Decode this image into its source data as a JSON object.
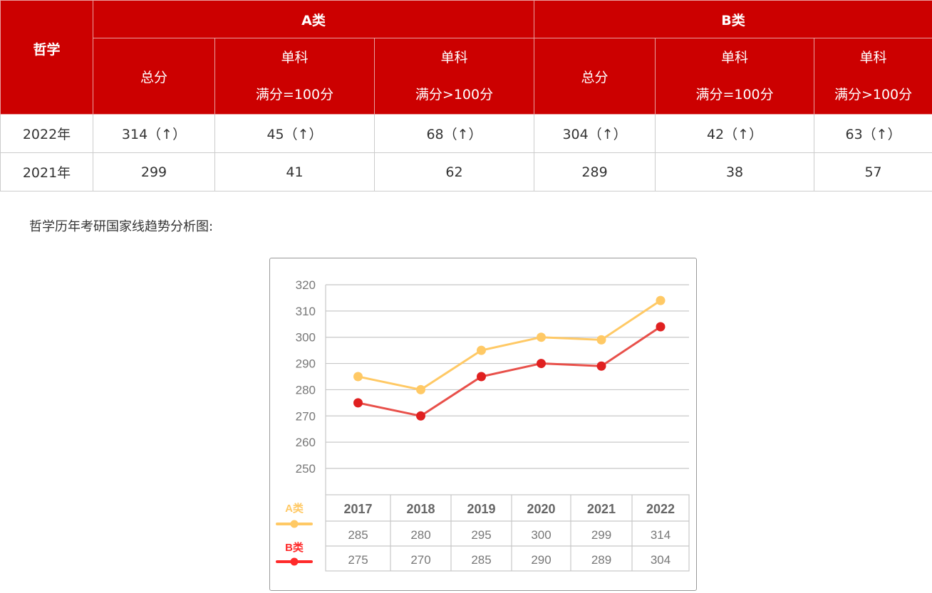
{
  "table": {
    "corner_label": "哲学",
    "groups": [
      {
        "label": "A类",
        "columns": [
          {
            "line1": "总分",
            "line2": ""
          },
          {
            "line1": "单科",
            "line2": "满分=100分"
          },
          {
            "line1": "单科",
            "line2": "满分>100分"
          }
        ]
      },
      {
        "label": "B类",
        "columns": [
          {
            "line1": "总分",
            "line2": ""
          },
          {
            "line1": "单科",
            "line2": "满分=100分"
          },
          {
            "line1": "单科",
            "line2": "满分>100分"
          }
        ]
      }
    ],
    "rows": [
      {
        "year": "2022年",
        "cells": [
          "314（↑）",
          "45（↑）",
          "68（↑）",
          "304（↑）",
          "42（↑）",
          "63（↑）"
        ]
      },
      {
        "year": "2021年",
        "cells": [
          "299",
          "41",
          "62",
          "289",
          "38",
          "57"
        ]
      }
    ]
  },
  "caption": "哲学历年考研国家线趋势分析图:",
  "colors": {
    "header_red": "#cc0000",
    "series_a": "#ffc965",
    "series_b": "#e02020",
    "legend_b_text": "#ff2a2a"
  },
  "chart_data": {
    "type": "line",
    "title": "",
    "xlabel": "",
    "ylabel": "",
    "x": [
      "2017",
      "2018",
      "2019",
      "2020",
      "2021",
      "2022"
    ],
    "series": [
      {
        "name": "A类",
        "values": [
          285,
          280,
          295,
          300,
          299,
          314
        ],
        "color": "#ffc965"
      },
      {
        "name": "B类",
        "values": [
          275,
          270,
          285,
          290,
          289,
          304
        ],
        "color": "#e02020"
      }
    ],
    "yticks": [
      320,
      310,
      300,
      290,
      280,
      270,
      260,
      250
    ],
    "ylim": [
      240,
      320
    ],
    "grid": true,
    "legend_position": "left-bottom, inline with data table",
    "data_table": true
  }
}
